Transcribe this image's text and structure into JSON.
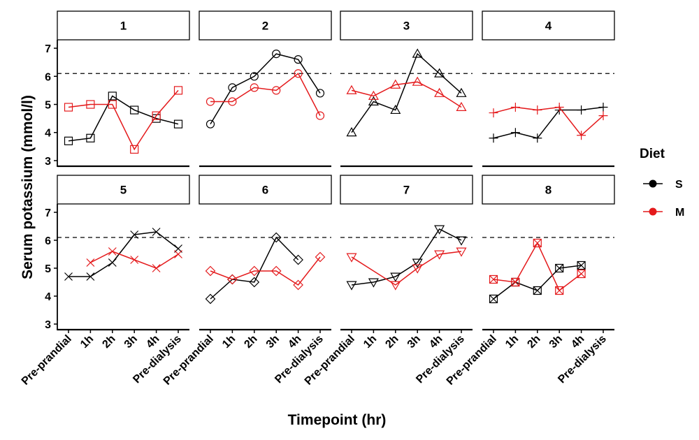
{
  "chart_data": {
    "type": "line",
    "ylabel": "Serum potassium (mmol/l)",
    "xlabel": "Timepoint (hr)",
    "categories": [
      "Pre-prandial",
      "1h",
      "2h",
      "3h",
      "4h",
      "Pre-dialysis"
    ],
    "ylim": [
      2.8,
      7.3
    ],
    "yticks": [
      3,
      4,
      5,
      6,
      7
    ],
    "reference_line": 6.1,
    "grid": false,
    "legend": {
      "title": "Diet",
      "placement": "right",
      "entries": [
        {
          "name": "S",
          "color": "#000000"
        },
        {
          "name": "M",
          "color": "#e41a1c"
        }
      ]
    },
    "panels": [
      {
        "label": "1",
        "marker": "square",
        "S": [
          3.7,
          3.8,
          5.3,
          4.8,
          4.5,
          4.3
        ],
        "M": [
          4.9,
          5.0,
          5.0,
          3.4,
          4.6,
          5.5
        ]
      },
      {
        "label": "2",
        "marker": "circle",
        "S": [
          4.3,
          5.6,
          6.0,
          6.8,
          6.6,
          5.4
        ],
        "M": [
          5.1,
          5.1,
          5.6,
          5.5,
          6.1,
          4.6
        ]
      },
      {
        "label": "3",
        "marker": "triangle-up",
        "S": [
          4.0,
          5.1,
          4.8,
          6.8,
          6.1,
          5.4
        ],
        "M": [
          5.5,
          5.3,
          5.7,
          5.8,
          5.4,
          4.9
        ]
      },
      {
        "label": "4",
        "marker": "plus",
        "S": [
          3.8,
          4.0,
          3.8,
          4.8,
          4.8,
          4.9
        ],
        "M": [
          4.7,
          4.9,
          4.8,
          4.9,
          3.9,
          4.6
        ]
      },
      {
        "label": "5",
        "marker": "cross",
        "S": [
          4.7,
          4.7,
          5.2,
          6.2,
          6.3,
          5.7
        ],
        "M": [
          null,
          5.2,
          5.6,
          5.3,
          5.0,
          5.5
        ]
      },
      {
        "label": "6",
        "marker": "diamond",
        "S": [
          3.9,
          4.6,
          4.5,
          6.1,
          5.3,
          null
        ],
        "M": [
          4.9,
          4.6,
          4.9,
          4.9,
          4.4,
          5.4
        ]
      },
      {
        "label": "7",
        "marker": "triangle-down",
        "S": [
          4.4,
          4.5,
          4.7,
          5.2,
          6.4,
          6.0
        ],
        "M": [
          5.4,
          null,
          4.4,
          5.0,
          5.5,
          5.6
        ]
      },
      {
        "label": "8",
        "marker": "square-cross",
        "S": [
          3.9,
          4.5,
          4.2,
          5.0,
          5.1,
          null
        ],
        "M": [
          4.6,
          4.5,
          5.9,
          4.2,
          4.8,
          null
        ]
      }
    ]
  }
}
